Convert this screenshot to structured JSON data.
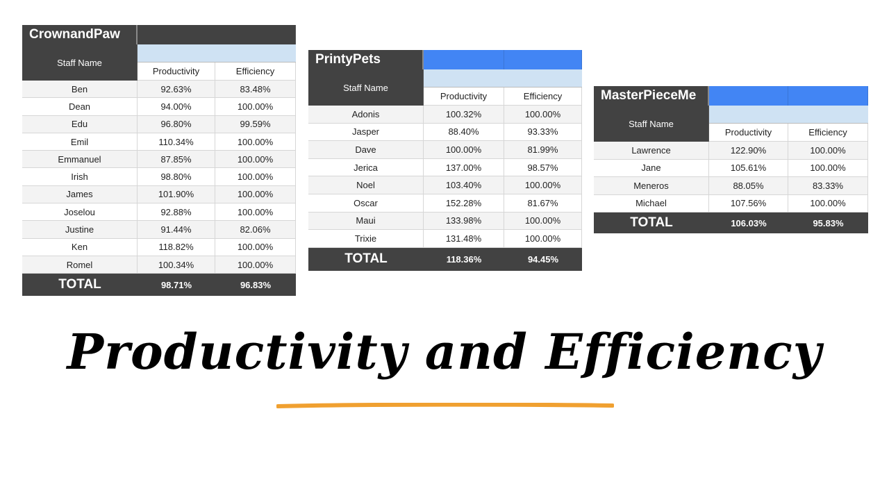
{
  "tables": [
    {
      "title": "CrownandPaw",
      "staff_header": "Staff Name",
      "col_productivity": "Productivity",
      "col_efficiency": "Efficiency",
      "header_color": "#424242",
      "rows": [
        {
          "name": "Ben",
          "productivity": "92.63%",
          "efficiency": "83.48%"
        },
        {
          "name": "Dean",
          "productivity": "94.00%",
          "efficiency": "100.00%"
        },
        {
          "name": "Edu",
          "productivity": "96.80%",
          "efficiency": "99.59%"
        },
        {
          "name": "Emil",
          "productivity": "110.34%",
          "efficiency": "100.00%"
        },
        {
          "name": "Emmanuel",
          "productivity": "87.85%",
          "efficiency": "100.00%"
        },
        {
          "name": "Irish",
          "productivity": "98.80%",
          "efficiency": "100.00%"
        },
        {
          "name": "James",
          "productivity": "101.90%",
          "efficiency": "100.00%"
        },
        {
          "name": "Joselou",
          "productivity": "92.88%",
          "efficiency": "100.00%"
        },
        {
          "name": "Justine",
          "productivity": "91.44%",
          "efficiency": "82.06%"
        },
        {
          "name": "Ken",
          "productivity": "118.82%",
          "efficiency": "100.00%"
        },
        {
          "name": "Romel",
          "productivity": "100.34%",
          "efficiency": "100.00%"
        }
      ],
      "total_label": "TOTAL",
      "total_productivity": "98.71%",
      "total_efficiency": "96.83%"
    },
    {
      "title": "PrintyPets",
      "staff_header": "Staff Name",
      "col_productivity": "Productivity",
      "col_efficiency": "Efficiency",
      "header_color": "#4285f4",
      "rows": [
        {
          "name": "Adonis",
          "productivity": "100.32%",
          "efficiency": "100.00%"
        },
        {
          "name": "Jasper",
          "productivity": "88.40%",
          "efficiency": "93.33%"
        },
        {
          "name": "Dave",
          "productivity": "100.00%",
          "efficiency": "81.99%"
        },
        {
          "name": "Jerica",
          "productivity": "137.00%",
          "efficiency": "98.57%"
        },
        {
          "name": "Noel",
          "productivity": "103.40%",
          "efficiency": "100.00%"
        },
        {
          "name": "Oscar",
          "productivity": "152.28%",
          "efficiency": "81.67%"
        },
        {
          "name": "Maui",
          "productivity": "133.98%",
          "efficiency": "100.00%"
        },
        {
          "name": "Trixie",
          "productivity": "131.48%",
          "efficiency": "100.00%"
        }
      ],
      "total_label": "TOTAL",
      "total_productivity": "118.36%",
      "total_efficiency": "94.45%"
    },
    {
      "title": "MasterPieceMe",
      "staff_header": "Staff Name",
      "col_productivity": "Productivity",
      "col_efficiency": "Efficiency",
      "header_color": "#4285f4",
      "rows": [
        {
          "name": "Lawrence",
          "productivity": "122.90%",
          "efficiency": "100.00%"
        },
        {
          "name": "Jane",
          "productivity": "105.61%",
          "efficiency": "100.00%"
        },
        {
          "name": "Meneros",
          "productivity": "88.05%",
          "efficiency": "83.33%"
        },
        {
          "name": "Michael",
          "productivity": "107.56%",
          "efficiency": "100.00%"
        }
      ],
      "total_label": "TOTAL",
      "total_productivity": "106.03%",
      "total_efficiency": "95.83%"
    }
  ],
  "headline": "Productivity and Efficiency",
  "underline_color": "#f0a030"
}
